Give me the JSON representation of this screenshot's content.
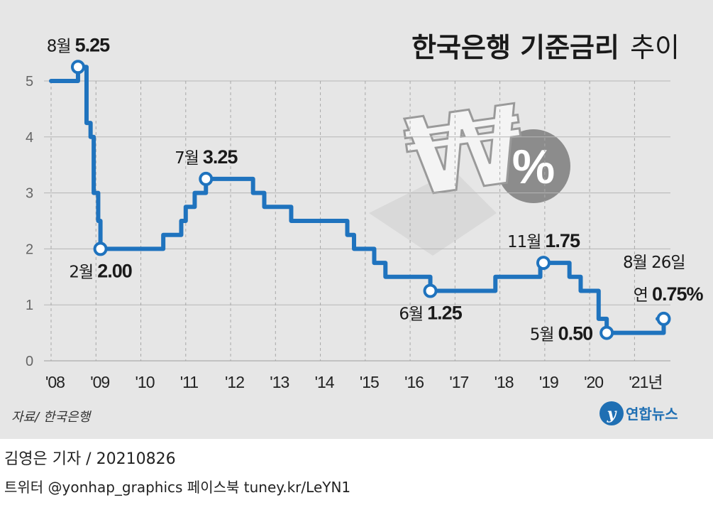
{
  "title": {
    "bold": "한국은행 기준금리",
    "normal": "추이"
  },
  "source": "자료/ 한국은행",
  "logo_text": "연합뉴스",
  "footer": {
    "line1": "김영은 기자 / 20210826",
    "line2": "트위터 @yonhap_graphics  페이스북 tuney.kr/LeYN1"
  },
  "colors": {
    "line": "#1f73be",
    "background": "#e6e6e6",
    "marker_fill": "#ffffff"
  },
  "icon": "won-percent-icon",
  "chart_data": {
    "type": "line",
    "title": "한국은행 기준금리 추이",
    "ylim": [
      0,
      5.25
    ],
    "yticks": [
      0,
      1,
      2,
      3,
      4,
      5
    ],
    "xlim": [
      2008.0,
      2021.8
    ],
    "x_tick_values": [
      2008,
      2009,
      2010,
      2011,
      2012,
      2013,
      2014,
      2015,
      2016,
      2017,
      2018,
      2019,
      2020,
      2021
    ],
    "x_tick_labels": [
      "'08",
      "'09",
      "'10",
      "'11",
      "'12",
      "'13",
      "'14",
      "'15",
      "'16",
      "'17",
      "'18",
      "'19",
      "'20",
      "'21년"
    ],
    "step": true,
    "series": [
      {
        "values": [
          {
            "x": 2008.0,
            "y": 5.0
          },
          {
            "x": 2008.6,
            "y": 5.25
          },
          {
            "x": 2008.79,
            "y": 4.25
          },
          {
            "x": 2008.88,
            "y": 4.0
          },
          {
            "x": 2008.95,
            "y": 3.0
          },
          {
            "x": 2009.05,
            "y": 2.5
          },
          {
            "x": 2009.1,
            "y": 2.0
          },
          {
            "x": 2010.5,
            "y": 2.25
          },
          {
            "x": 2010.9,
            "y": 2.5
          },
          {
            "x": 2011.0,
            "y": 2.75
          },
          {
            "x": 2011.2,
            "y": 3.0
          },
          {
            "x": 2011.45,
            "y": 3.25
          },
          {
            "x": 2012.5,
            "y": 3.0
          },
          {
            "x": 2012.75,
            "y": 2.75
          },
          {
            "x": 2013.35,
            "y": 2.5
          },
          {
            "x": 2014.6,
            "y": 2.25
          },
          {
            "x": 2014.75,
            "y": 2.0
          },
          {
            "x": 2015.2,
            "y": 1.75
          },
          {
            "x": 2015.45,
            "y": 1.5
          },
          {
            "x": 2016.45,
            "y": 1.25
          },
          {
            "x": 2017.9,
            "y": 1.5
          },
          {
            "x": 2018.9,
            "y": 1.75
          },
          {
            "x": 2019.55,
            "y": 1.5
          },
          {
            "x": 2019.8,
            "y": 1.25
          },
          {
            "x": 2020.2,
            "y": 0.75
          },
          {
            "x": 2020.38,
            "y": 0.5
          },
          {
            "x": 2021.65,
            "y": 0.75
          }
        ]
      }
    ],
    "annotations": [
      {
        "x": 2008.6,
        "y": 5.25,
        "month": "8월",
        "value": "5.25",
        "position": "above"
      },
      {
        "x": 2009.1,
        "y": 2.0,
        "month": "2월",
        "value": "2.00",
        "position": "below"
      },
      {
        "x": 2011.45,
        "y": 3.25,
        "month": "7월",
        "value": "3.25",
        "position": "above"
      },
      {
        "x": 2016.45,
        "y": 1.25,
        "month": "6월",
        "value": "1.25",
        "position": "below"
      },
      {
        "x": 2018.97,
        "y": 1.75,
        "month": "11월",
        "value": "1.75",
        "position": "above"
      },
      {
        "x": 2020.38,
        "y": 0.5,
        "month": "5월",
        "value": "0.50",
        "position": "left"
      },
      {
        "x": 2021.65,
        "y": 0.75,
        "month": "8월 26일",
        "value": "0.75%",
        "prefix": "연",
        "position": "above2"
      }
    ]
  }
}
